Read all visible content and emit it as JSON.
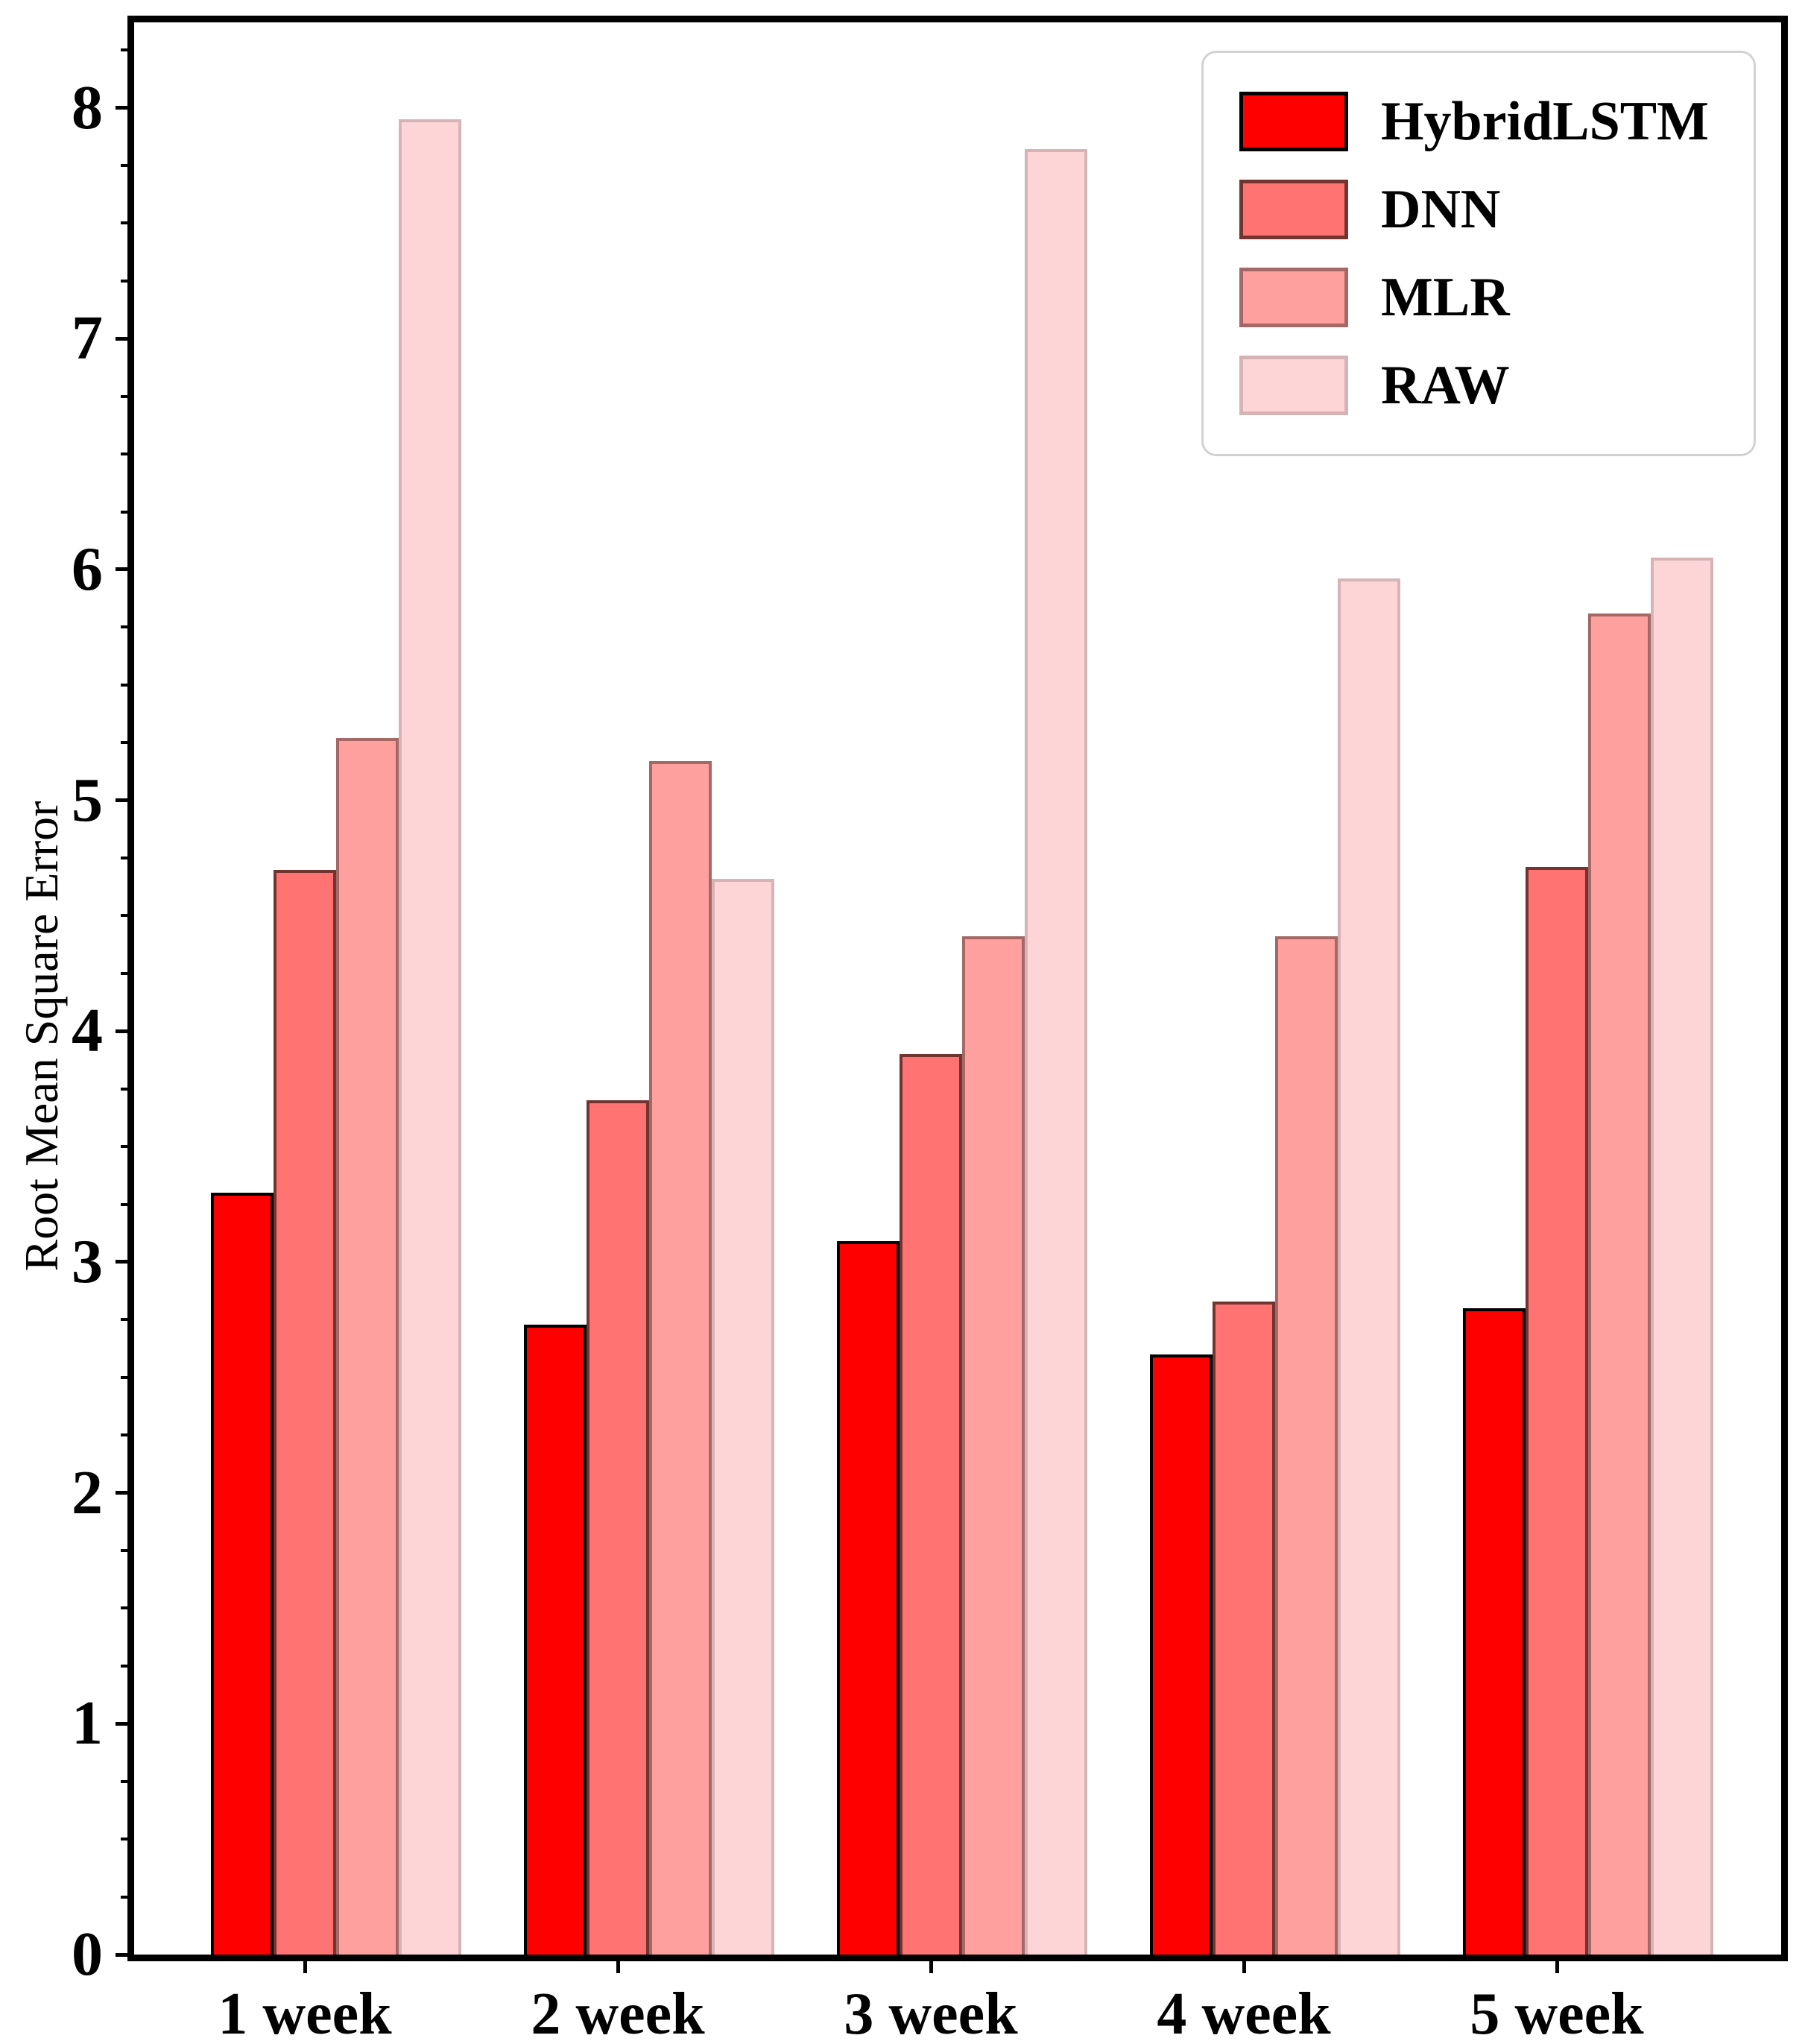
{
  "figure": {
    "ylabel": "Root Mean Square Error",
    "background_color": "#ffffff",
    "axis_color": "#000000"
  },
  "chart_data": {
    "type": "bar",
    "title": "",
    "xlabel": "",
    "ylabel": "Root Mean Square Error",
    "categories": [
      "1 week",
      "2 week",
      "3 week",
      "4 week",
      "5 week"
    ],
    "series": [
      {
        "name": "HybridLSTM",
        "values": [
          3.3,
          2.73,
          3.09,
          2.6,
          2.8
        ],
        "fill": "#ff0000",
        "edge": "#000000"
      },
      {
        "name": "DNN",
        "values": [
          4.7,
          3.7,
          3.9,
          2.83,
          4.71
        ],
        "fill": "#ff7473",
        "edge": "#72342f"
      },
      {
        "name": "MLR",
        "values": [
          5.27,
          5.17,
          4.41,
          4.41,
          5.81
        ],
        "fill": "#fda09e",
        "edge": "#a46867"
      },
      {
        "name": "RAW",
        "values": [
          7.95,
          4.66,
          7.82,
          5.96,
          6.05
        ],
        "fill": "#fdd5d6",
        "edge": "#d6b4b6"
      }
    ],
    "ylim": [
      0,
      8.37
    ],
    "y_ticks": [
      "0",
      "1",
      "2",
      "3",
      "4",
      "5",
      "6",
      "7",
      "8"
    ],
    "y_minor_step": 0.25,
    "grid": false,
    "legend_position": "upper right"
  }
}
